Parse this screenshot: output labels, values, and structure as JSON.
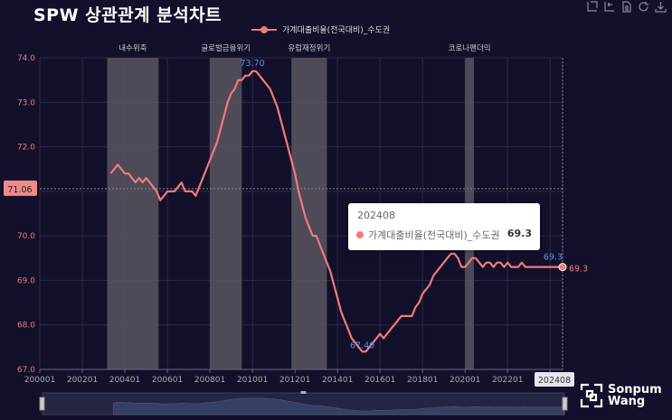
{
  "app": {
    "title": "SPW 상관관계 분석차트"
  },
  "toolbar": {
    "icons": [
      "zoom-select-icon",
      "zoom-reset-icon",
      "data-view-icon",
      "restore-icon",
      "save-image-icon"
    ]
  },
  "colors": {
    "background": "#12102a",
    "line": "#f07a7a",
    "highlight": "#5b8def",
    "recession": "#5a5560",
    "grid": "#2c2a45"
  },
  "brand": {
    "line1": "Sonpum",
    "line2": "Wang"
  },
  "tooltip": {
    "period": "202408",
    "series": "가계대출비율(전국대비)_수도권",
    "value": "69.3"
  },
  "chart_data": {
    "type": "line",
    "series": [
      {
        "name": "가계대출비율(전국대비)_수도권",
        "points": [
          [
            "200305",
            71.4
          ],
          [
            "200307",
            71.5
          ],
          [
            "200309",
            71.6
          ],
          [
            "200311",
            71.5
          ],
          [
            "200401",
            71.4
          ],
          [
            "200403",
            71.4
          ],
          [
            "200405",
            71.3
          ],
          [
            "200407",
            71.2
          ],
          [
            "200409",
            71.3
          ],
          [
            "200411",
            71.2
          ],
          [
            "200501",
            71.3
          ],
          [
            "200503",
            71.2
          ],
          [
            "200505",
            71.1
          ],
          [
            "200507",
            71.0
          ],
          [
            "200509",
            70.8
          ],
          [
            "200511",
            70.9
          ],
          [
            "200601",
            71.0
          ],
          [
            "200603",
            71.0
          ],
          [
            "200605",
            71.0
          ],
          [
            "200607",
            71.1
          ],
          [
            "200609",
            71.2
          ],
          [
            "200611",
            71.0
          ],
          [
            "200701",
            71.0
          ],
          [
            "200703",
            71.0
          ],
          [
            "200705",
            70.9
          ],
          [
            "200707",
            71.1
          ],
          [
            "200709",
            71.3
          ],
          [
            "200711",
            71.5
          ],
          [
            "200801",
            71.7
          ],
          [
            "200803",
            71.9
          ],
          [
            "200805",
            72.1
          ],
          [
            "200807",
            72.4
          ],
          [
            "200809",
            72.7
          ],
          [
            "200811",
            73.0
          ],
          [
            "200901",
            73.2
          ],
          [
            "200903",
            73.3
          ],
          [
            "200905",
            73.5
          ],
          [
            "200907",
            73.5
          ],
          [
            "200909",
            73.6
          ],
          [
            "200911",
            73.6
          ],
          [
            "201001",
            73.7
          ],
          [
            "201003",
            73.7
          ],
          [
            "201005",
            73.6
          ],
          [
            "201007",
            73.5
          ],
          [
            "201009",
            73.4
          ],
          [
            "201011",
            73.3
          ],
          [
            "201101",
            73.1
          ],
          [
            "201103",
            72.9
          ],
          [
            "201105",
            72.6
          ],
          [
            "201107",
            72.3
          ],
          [
            "201109",
            72.0
          ],
          [
            "201111",
            71.7
          ],
          [
            "201201",
            71.4
          ],
          [
            "201203",
            71.0
          ],
          [
            "201205",
            70.7
          ],
          [
            "201207",
            70.4
          ],
          [
            "201209",
            70.2
          ],
          [
            "201211",
            70.0
          ],
          [
            "201301",
            70.0
          ],
          [
            "201303",
            69.8
          ],
          [
            "201305",
            69.6
          ],
          [
            "201307",
            69.4
          ],
          [
            "201309",
            69.2
          ],
          [
            "201311",
            68.9
          ],
          [
            "201401",
            68.6
          ],
          [
            "201403",
            68.3
          ],
          [
            "201405",
            68.1
          ],
          [
            "201407",
            67.9
          ],
          [
            "201409",
            67.7
          ],
          [
            "201411",
            67.6
          ],
          [
            "201501",
            67.5
          ],
          [
            "201503",
            67.4
          ],
          [
            "201505",
            67.4
          ],
          [
            "201507",
            67.5
          ],
          [
            "201509",
            67.6
          ],
          [
            "201511",
            67.7
          ],
          [
            "201601",
            67.8
          ],
          [
            "201603",
            67.7
          ],
          [
            "201605",
            67.8
          ],
          [
            "201607",
            67.9
          ],
          [
            "201609",
            68.0
          ],
          [
            "201611",
            68.1
          ],
          [
            "201701",
            68.2
          ],
          [
            "201703",
            68.2
          ],
          [
            "201705",
            68.2
          ],
          [
            "201707",
            68.2
          ],
          [
            "201709",
            68.4
          ],
          [
            "201711",
            68.5
          ],
          [
            "201801",
            68.7
          ],
          [
            "201803",
            68.8
          ],
          [
            "201805",
            68.9
          ],
          [
            "201807",
            69.1
          ],
          [
            "201809",
            69.2
          ],
          [
            "201811",
            69.3
          ],
          [
            "201901",
            69.4
          ],
          [
            "201903",
            69.5
          ],
          [
            "201905",
            69.6
          ],
          [
            "201907",
            69.6
          ],
          [
            "201909",
            69.5
          ],
          [
            "201911",
            69.3
          ],
          [
            "202001",
            69.3
          ],
          [
            "202003",
            69.4
          ],
          [
            "202005",
            69.5
          ],
          [
            "202007",
            69.5
          ],
          [
            "202009",
            69.4
          ],
          [
            "202011",
            69.3
          ],
          [
            "202101",
            69.4
          ],
          [
            "202103",
            69.4
          ],
          [
            "202105",
            69.3
          ],
          [
            "202107",
            69.4
          ],
          [
            "202109",
            69.4
          ],
          [
            "202111",
            69.3
          ],
          [
            "202201",
            69.4
          ],
          [
            "202203",
            69.3
          ],
          [
            "202205",
            69.3
          ],
          [
            "202207",
            69.3
          ],
          [
            "202209",
            69.4
          ],
          [
            "202211",
            69.3
          ],
          [
            "202301",
            69.3
          ],
          [
            "202303",
            69.3
          ],
          [
            "202305",
            69.3
          ],
          [
            "202307",
            69.3
          ],
          [
            "202309",
            69.3
          ],
          [
            "202311",
            69.3
          ],
          [
            "202401",
            69.3
          ],
          [
            "202403",
            69.3
          ],
          [
            "202405",
            69.3
          ],
          [
            "202407",
            69.3
          ],
          [
            "202408",
            69.3
          ]
        ]
      }
    ],
    "x_ticks": [
      "200001",
      "200201",
      "200401",
      "200601",
      "200801",
      "201001",
      "201201",
      "201401",
      "201601",
      "201801",
      "202001",
      "202201",
      "202401"
    ],
    "y_ticks": [
      "67.0",
      "68.0",
      "69.0",
      "70.0",
      "71.0",
      "72.0",
      "73.0",
      "74.0"
    ],
    "ylim": [
      67.0,
      74.0
    ],
    "xlim": [
      "200001",
      "202408"
    ],
    "grid": true,
    "legend": "top-center",
    "crosshair": {
      "y_label": "71.06",
      "x_label": "202408"
    },
    "annotations": [
      {
        "label": "73.70",
        "at": "201001",
        "value": 73.7,
        "type": "max"
      },
      {
        "label": "67.40",
        "at": "201503",
        "value": 67.4,
        "type": "min"
      },
      {
        "label": "69.3",
        "at": "202408",
        "value": 69.3,
        "type": "last"
      },
      {
        "label": "69.3",
        "at": "202408",
        "value": 69.3,
        "type": "end"
      }
    ],
    "shaded_periods": [
      {
        "label": "내수위축",
        "start": "200303",
        "end": "200508"
      },
      {
        "label": "글로벌금융위기",
        "start": "200801",
        "end": "200907"
      },
      {
        "label": "유럽재정위기",
        "start": "201111",
        "end": "201307"
      },
      {
        "label": "코로나팬더믹",
        "start": "202001",
        "end": "202006"
      }
    ]
  }
}
